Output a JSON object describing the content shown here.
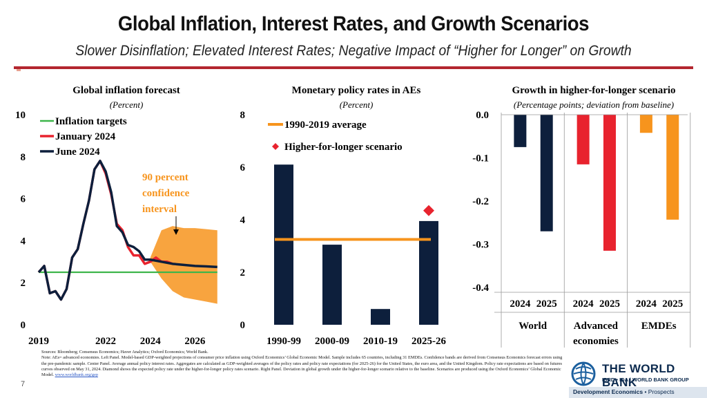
{
  "header": {
    "title": "Global Inflation, Interest Rates, and Growth Scenarios",
    "subtitle": "Slower Disinflation; Elevated Interest Rates; Negative Impact of “Higher for Longer” on Growth"
  },
  "colors": {
    "accent": "#b3262f",
    "navy": "#0d1f3c",
    "red": "#e8232e",
    "orange": "#f7941d",
    "green": "#3db54a"
  },
  "chart_data": [
    {
      "type": "line",
      "title": "Global inflation forecast",
      "subtitle": "(Percent)",
      "ylim": [
        0,
        10
      ],
      "ytick_labels": [
        "0",
        "2",
        "4",
        "6",
        "8",
        "10"
      ],
      "xlim": [
        2019,
        2027.1
      ],
      "xtick_values": [
        2019,
        2022,
        2024,
        2026
      ],
      "xtick_labels": [
        "2019",
        "2022",
        "2024",
        "2026"
      ],
      "legend": [
        "Inflation targets",
        "January 2024",
        "June 2024"
      ],
      "annotation": {
        "lines": [
          "90 percent",
          "confidence",
          "interval"
        ]
      },
      "series": [
        {
          "name": "Inflation targets",
          "color": "#3db54a",
          "x": [
            2019,
            2027
          ],
          "y": [
            2.5,
            2.5
          ]
        },
        {
          "name": "January 2024",
          "color": "#e8232e",
          "x": [
            2019,
            2019.25,
            2019.5,
            2019.75,
            2020,
            2020.25,
            2020.5,
            2020.75,
            2021,
            2021.25,
            2021.5,
            2021.75,
            2022,
            2022.25,
            2022.5,
            2022.75,
            2023,
            2023.25,
            2023.5,
            2023.75,
            2024,
            2024.25,
            2024.5,
            2024.75,
            2025
          ],
          "y": [
            2.5,
            2.8,
            1.5,
            1.6,
            1.2,
            1.7,
            3.2,
            3.6,
            4.8,
            5.9,
            7.4,
            7.8,
            7.2,
            6.2,
            4.8,
            4.5,
            3.7,
            3.3,
            3.3,
            2.9,
            3.0,
            3.2,
            3.0,
            3.0,
            2.9
          ]
        },
        {
          "name": "June 2024",
          "color": "#0d1f3c",
          "x": [
            2019,
            2019.25,
            2019.5,
            2019.75,
            2020,
            2020.25,
            2020.5,
            2020.75,
            2021,
            2021.25,
            2021.5,
            2021.75,
            2022,
            2022.25,
            2022.5,
            2022.75,
            2023,
            2023.25,
            2023.5,
            2023.75,
            2024,
            2024.5,
            2025,
            2025.5,
            2026,
            2026.5,
            2027
          ],
          "y": [
            2.5,
            2.8,
            1.5,
            1.6,
            1.2,
            1.7,
            3.2,
            3.6,
            4.8,
            5.9,
            7.4,
            7.8,
            7.3,
            6.3,
            4.7,
            4.4,
            3.8,
            3.7,
            3.5,
            3.1,
            3.1,
            3.0,
            2.9,
            2.85,
            2.8,
            2.78,
            2.75
          ]
        },
        {
          "name": "90 percent confidence interval",
          "color": "#f7941d",
          "x": [
            2024,
            2024.5,
            2025,
            2025.5,
            2026,
            2026.5,
            2027
          ],
          "upper": [
            3.2,
            4.5,
            4.7,
            4.6,
            4.6,
            4.55,
            4.5
          ],
          "lower": [
            3.0,
            2.2,
            1.6,
            1.3,
            1.2,
            1.1,
            1.0
          ]
        }
      ]
    },
    {
      "type": "bar",
      "title": "Monetary policy rates in AEs",
      "subtitle": "(Percent)",
      "ylim": [
        0,
        8
      ],
      "ytick_labels": [
        "0",
        "2",
        "4",
        "6",
        "8"
      ],
      "categories": [
        "1990-99",
        "2000-09",
        "2010-19",
        "2025-26"
      ],
      "values": [
        6.1,
        3.05,
        0.6,
        3.95
      ],
      "reference_line": {
        "name": "1990-2019 average",
        "value": 3.25,
        "color": "#f7941d"
      },
      "marker": {
        "name": "Higher-for-longer scenario",
        "category": "2025-26",
        "value": 4.35,
        "color": "#e8232e"
      },
      "legend": [
        "1990-2019 average",
        "Higher-for-longer scenario"
      ]
    },
    {
      "type": "bar",
      "title": "Growth in higher-for-longer scenario",
      "subtitle": "(Percentage points; deviation from baseline)",
      "ylim": [
        -0.4,
        0.0
      ],
      "ytick_labels": [
        "0.0",
        "-0.1",
        "-0.2",
        "-0.3",
        "-0.4"
      ],
      "groups": [
        {
          "name": "World",
          "name_lines": [
            "World"
          ],
          "bars": [
            {
              "label": "2024",
              "value": -0.075,
              "color": "#0d1f3c"
            },
            {
              "label": "2025",
              "value": -0.27,
              "color": "#0d1f3c"
            }
          ]
        },
        {
          "name": "Advanced economies",
          "name_lines": [
            "Advanced",
            "economies"
          ],
          "bars": [
            {
              "label": "2024",
              "value": -0.115,
              "color": "#e8232e"
            },
            {
              "label": "2025",
              "value": -0.315,
              "color": "#e8232e"
            }
          ]
        },
        {
          "name": "EMDEs",
          "name_lines": [
            "EMDEs"
          ],
          "bars": [
            {
              "label": "2024",
              "value": -0.042,
              "color": "#f7941d"
            },
            {
              "label": "2025",
              "value": -0.243,
              "color": "#f7941d"
            }
          ]
        }
      ]
    }
  ],
  "notes": {
    "line1": "Sources: Bloomberg; Consensus Economics; Haver Analytics; Oxford Economics; World Bank.",
    "line2": "Note: AEs= advanced economies. Left Panel. Model-based GDP-weighted projections of consumer price inflation using Oxford Economics’ Global Economic Model. Sample includes 65 countries, including 31 EMDEs. Confidence bands are derived from Consensus Economics forecast errors using the pre-pandemic sample. Center Panel. Average annual policy interest rates. Aggregates are calculated as GDP-weighted averages of the policy rates and policy rate expectations (for 2025-26) for the United States, the euro area, and the United Kingdom. Policy rate expectations are based on futures curves observed on May 31, 2024. Diamond shows the expected policy rate under the higher-for-longer policy rates scenario. Right Panel. Deviation in global growth under the higher-for-longer scenario relative to the baseline. Scenarios are produced using the Oxford Economics’ Global Economic Model.",
    "link": "www.worldbank.org/gep"
  },
  "footer": {
    "page_number": "7",
    "logo_name": "THE WORLD BANK",
    "logo_tagline": "IBRD • IDA | WORLD BANK GROUP",
    "dept_bold": "Development Economics",
    "dept_rest": " • Prospects"
  }
}
